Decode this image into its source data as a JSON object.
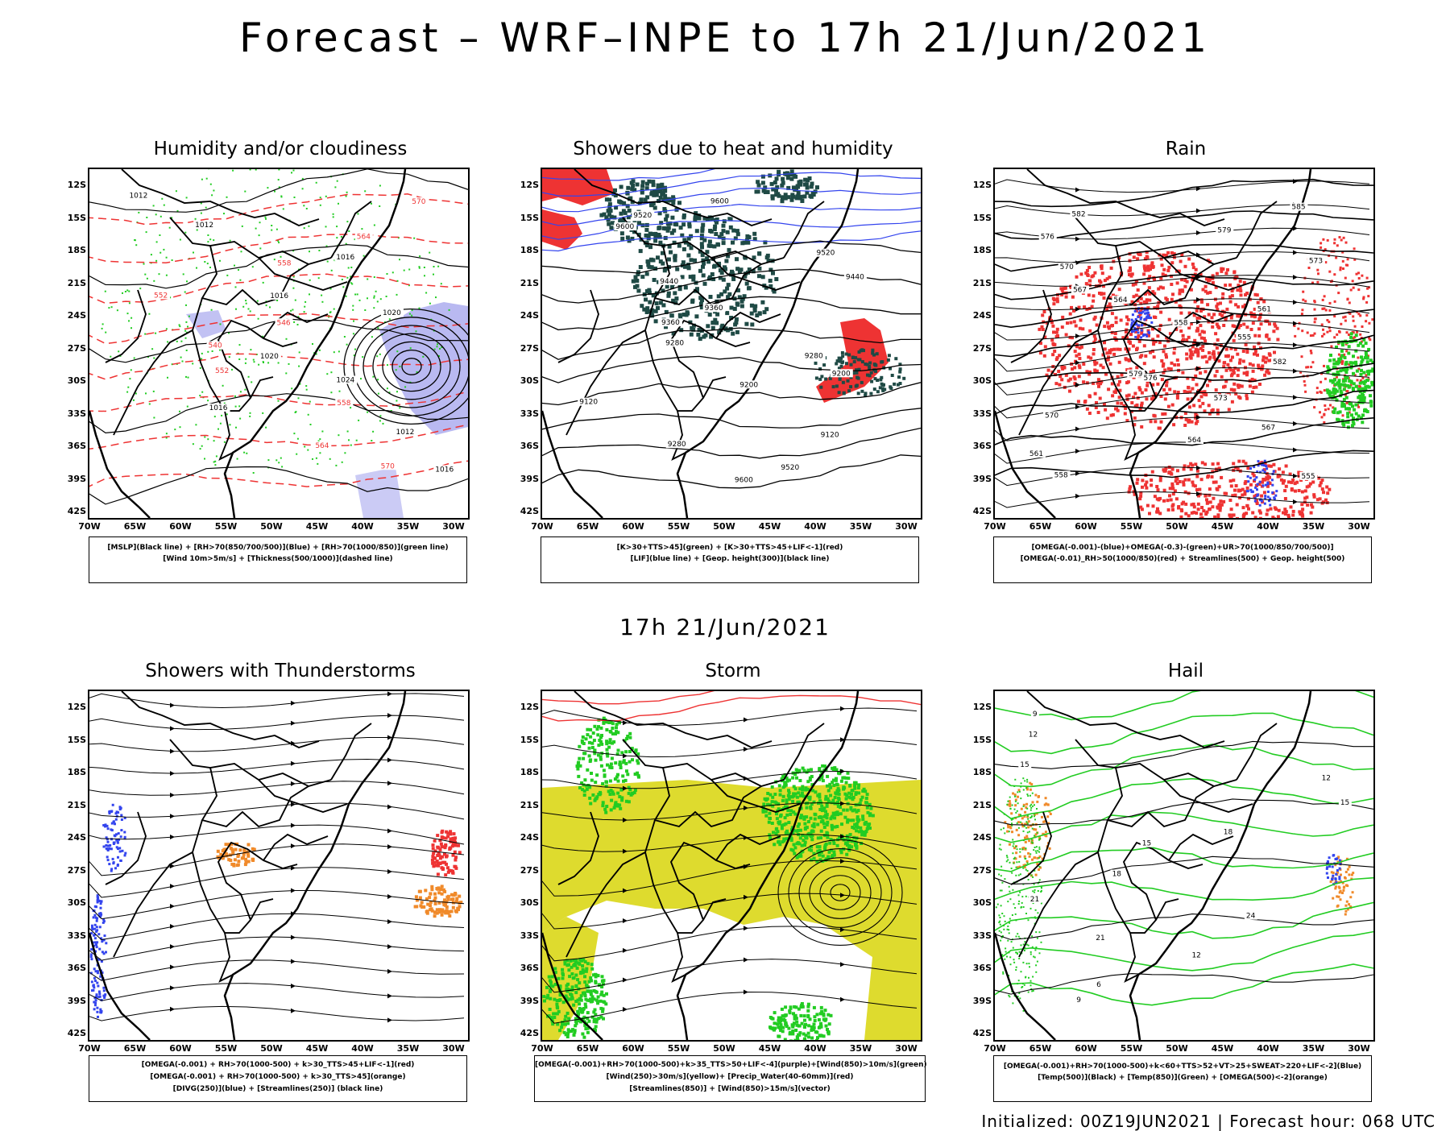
{
  "title": "Forecast – WRF–INPE to 17h 21/Jun/2021",
  "subtitle": "17h 21/Jun/2021",
  "footer": "Initialized: 00Z19JUN2021 | Forecast hour: 068 UTC",
  "axes": {
    "lat": [
      "12S",
      "15S",
      "18S",
      "21S",
      "24S",
      "27S",
      "30S",
      "33S",
      "36S",
      "39S",
      "42S"
    ],
    "lon": [
      "70W",
      "65W",
      "60W",
      "55W",
      "50W",
      "45W",
      "40W",
      "35W",
      "30W"
    ]
  },
  "colors": {
    "green": "#22cc22",
    "red": "#ee3333",
    "blue": "#3344ee",
    "lavender": "#a8a8ee",
    "dark_teal": "#1f4a45",
    "yellow": "#dedb2e",
    "orange": "#f08a2a",
    "purple": "#9933cc"
  },
  "panels": [
    {
      "title": "Humidity and/or cloudiness",
      "legend": [
        "[MSLP](Black line) + [RH>70(850/700/500)](Blue) + [RH>70(1000/850)](green line)",
        "[Wind 10m>5m/s] + [Thickness(500/1000)](dashed line)"
      ],
      "contour_labels": [
        "1012",
        "1012",
        "1016",
        "1016",
        "1020",
        "1020",
        "1024",
        "1016",
        "1012",
        "1016"
      ],
      "red_labels": [
        "570",
        "564",
        "558",
        "552",
        "546",
        "540",
        "552",
        "558",
        "564",
        "570"
      ]
    },
    {
      "title": "Showers due to heat and humidity",
      "legend": [
        "[K>30+TTS>45](green) + [K>30+TTS>45+LIF<-1](red)",
        "[LIF](blue line) + [Geop. height(300)](black line)"
      ],
      "contour_labels": [
        "9600",
        "9520",
        "9600",
        "9520",
        "9440",
        "9440",
        "9360",
        "9360",
        "9280",
        "9280",
        "9200",
        "9200",
        "9120",
        "9120",
        "9280",
        "9520",
        "9600"
      ]
    },
    {
      "title": "Rain",
      "legend": [
        "[OMEGA(-0.001)-(blue)+OMEGA(-0.3)-(green)+UR>70(1000/850/700/500)]",
        "[OMEGA(-0.01)_RH>50(1000/850)(red) + Streamlines(500) + Geop. height(500)"
      ],
      "contour_labels": [
        "585",
        "582",
        "579",
        "576",
        "573",
        "570",
        "567",
        "564",
        "561",
        "558",
        "555",
        "582",
        "579",
        "576",
        "573",
        "570",
        "567",
        "564",
        "561",
        "558",
        "555"
      ]
    },
    {
      "title": "Showers with Thunderstorms",
      "legend": [
        "[OMEGA(-0.001) + RH>70(1000-500) + k>30_TTS>45+LIF<-1](red)",
        "[OMEGA(-0.001) + RH>70(1000-500) + k>30_TTS>45](orange)",
        "[DIVG(250)](blue) + [Streamlines(250)] (black line)"
      ]
    },
    {
      "title": "Storm",
      "legend": [
        "[OMEGA(-0.001)+RH>70(1000-500)+k>35_TTS>50+LIF<-4](purple)+[Wind(850)>10m/s](green)",
        "[Wind(250)>30m/s](yellow)+ [Precip_Water(40-60mm)](red)",
        "[Streamlines(850)] + [Wind(850)>15m/s](vector)"
      ]
    },
    {
      "title": "Hail",
      "legend": [
        "[OMEGA(-0.001)+RH>70(1000-500)+k<60+TTS>52+VT>25+SWEAT>220+LIF<-2](Blue)",
        "[Temp(500)](Black) + [Temp(850)](Green) + [OMEGA(500)<-2](orange)"
      ],
      "contour_labels": [
        "9",
        "12",
        "15",
        "12",
        "15",
        "18",
        "15",
        "18",
        "21",
        "24",
        "21",
        "12",
        "6",
        "9"
      ]
    }
  ]
}
